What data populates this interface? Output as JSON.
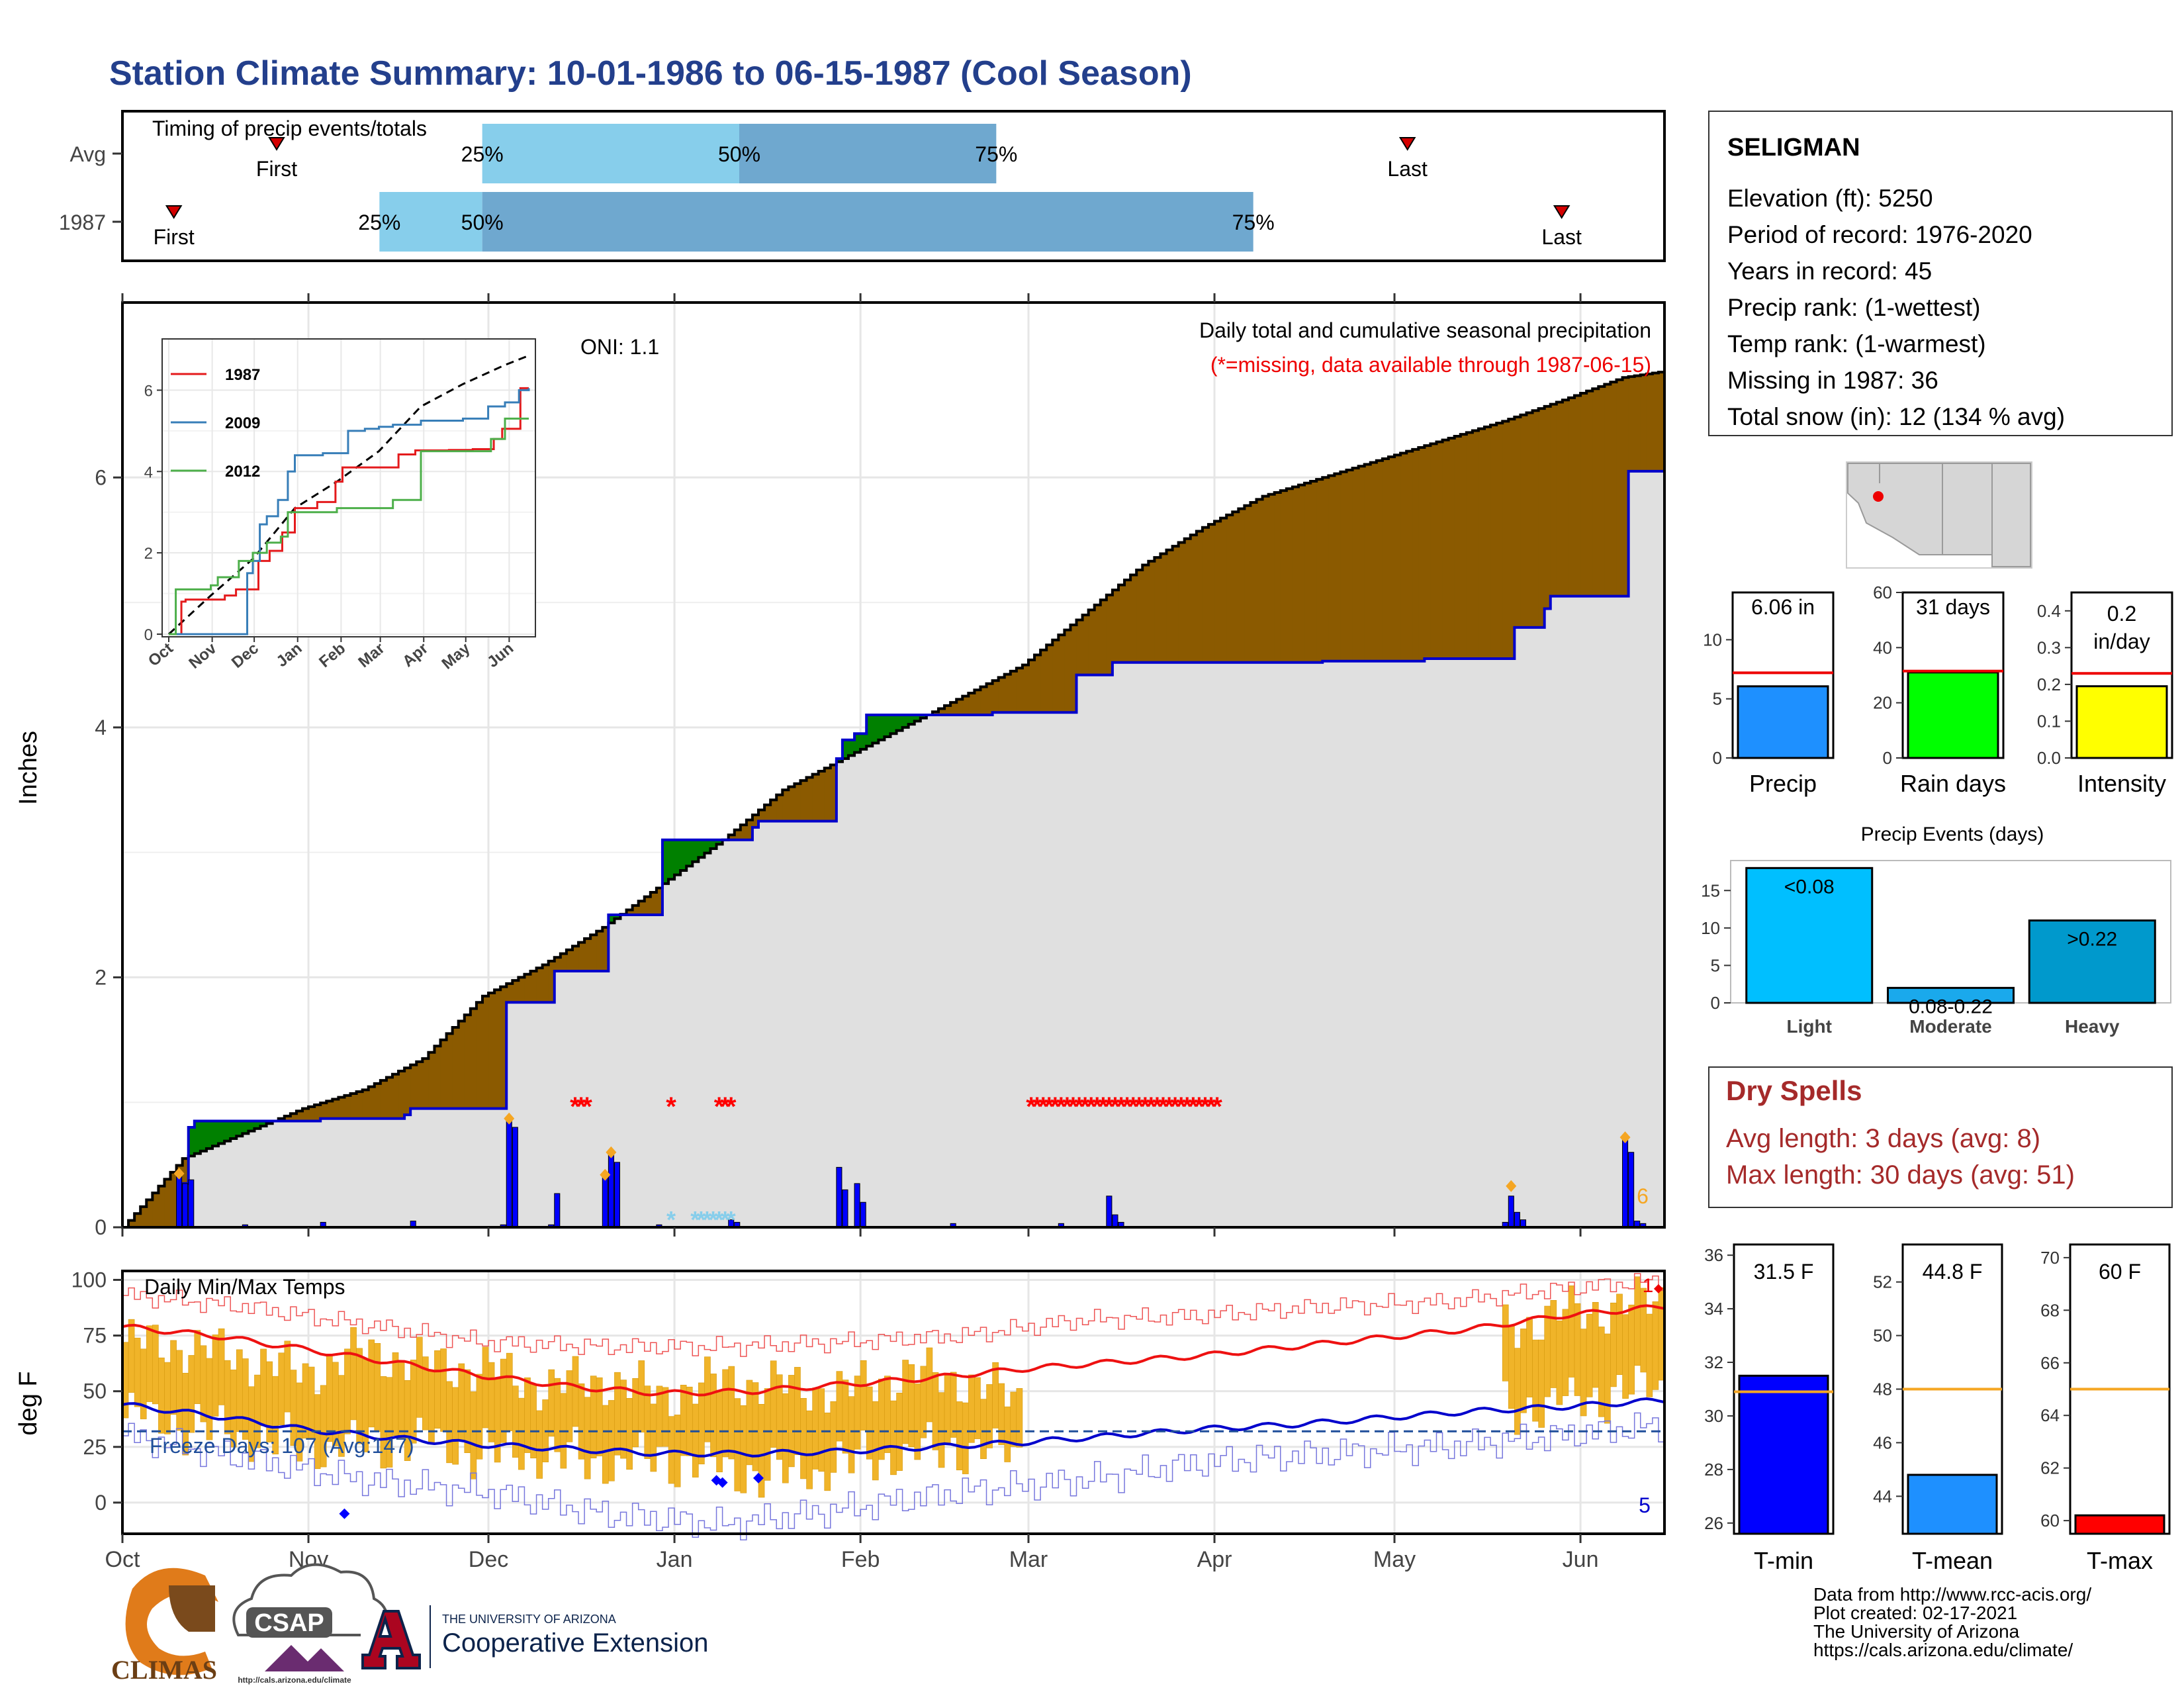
{
  "title": "Station Climate Summary: 10-01-1986 to 06-15-1987 (Cool Season)",
  "timing": {
    "title": "Timing of precip events/totals",
    "rows": [
      {
        "label": "Avg",
        "first": 15,
        "q25": 35,
        "q50": 60,
        "q75": 85,
        "last": 125
      },
      {
        "label": "1987",
        "first": 5,
        "q25": 25,
        "q50": 35,
        "q75": 110,
        "last": 140
      }
    ],
    "pct_labels": [
      "25%",
      "50%",
      "75%"
    ],
    "first_label": "First",
    "last_label": "Last",
    "colors": {
      "q1": "#87ceeb",
      "q2": "#6fa8cf",
      "marker": "#d40000"
    }
  },
  "info": {
    "station": "SELIGMAN",
    "lines": [
      "Elevation (ft): 5250",
      "Period of record: 1976-2020",
      "Years in record: 45",
      "Precip rank:  (1-wettest)",
      "Temp rank:  (1-warmest)",
      "Missing in 1987: 36",
      "Total snow (in): 12 (134 % avg)"
    ]
  },
  "chart_data": [
    {
      "name": "precip",
      "type": "area",
      "ylabel": "Inches",
      "ylim": [
        0,
        7.4
      ],
      "yticks": [
        0,
        2,
        4,
        6
      ],
      "x_months": [
        "Oct",
        "Nov",
        "Dec",
        "Jan",
        "Feb",
        "Mar",
        "Apr",
        "May",
        "Jun"
      ],
      "header": "Daily total and cumulative seasonal precipitation",
      "subheader": "(*=missing, data available through 1987-06-15)",
      "oni": "ONI: 1.1",
      "corner_count": "6",
      "avg_cumulative": {
        "x": [
          0,
          10,
          20,
          30,
          40,
          50,
          60,
          70,
          80,
          90,
          100,
          110,
          120,
          130,
          140,
          150,
          160,
          170,
          180,
          190,
          200,
          210,
          220,
          230,
          240,
          250,
          257
        ],
        "y": [
          0,
          0.55,
          0.75,
          0.95,
          1.1,
          1.35,
          1.85,
          2.1,
          2.4,
          2.75,
          3.1,
          3.5,
          3.75,
          4.0,
          4.25,
          4.5,
          4.9,
          5.3,
          5.6,
          5.85,
          6.0,
          6.15,
          6.3,
          6.45,
          6.62,
          6.8,
          6.85
        ]
      },
      "cumulative_1987": {
        "x": [
          0,
          9,
          10,
          11,
          12,
          32,
          33,
          34,
          47,
          48,
          49,
          63,
          64,
          65,
          71,
          72,
          80,
          81,
          89,
          90,
          101,
          105,
          106,
          118,
          119,
          120,
          122,
          124,
          125,
          142,
          145,
          146,
          158,
          159,
          164,
          165,
          176,
          177,
          199,
          200,
          216,
          217,
          231,
          232,
          237,
          238,
          250,
          251,
          257
        ],
        "y": [
          0,
          0,
          0.35,
          0.8,
          0.85,
          0.85,
          0.87,
          0.87,
          0.9,
          0.95,
          0.95,
          0.95,
          1.8,
          1.8,
          1.8,
          2.05,
          2.05,
          2.5,
          2.5,
          3.1,
          3.1,
          3.2,
          3.25,
          3.25,
          3.75,
          3.9,
          3.95,
          4.1,
          4.1,
          4.1,
          4.12,
          4.12,
          4.12,
          4.42,
          4.42,
          4.52,
          4.52,
          4.52,
          4.52,
          4.53,
          4.53,
          4.55,
          4.55,
          4.8,
          4.95,
          5.05,
          5.05,
          6.05,
          6.05
        ]
      },
      "daily_1987": [
        {
          "day": 9,
          "value": 0.43
        },
        {
          "day": 10,
          "value": 0.35
        },
        {
          "day": 11,
          "value": 0.38
        },
        {
          "day": 20,
          "value": 0.02
        },
        {
          "day": 33,
          "value": 0.04
        },
        {
          "day": 48,
          "value": 0.05
        },
        {
          "day": 63,
          "value": 0.02
        },
        {
          "day": 64,
          "value": 0.85
        },
        {
          "day": 65,
          "value": 0.8
        },
        {
          "day": 71,
          "value": 0.02
        },
        {
          "day": 72,
          "value": 0.27
        },
        {
          "day": 80,
          "value": 0.4
        },
        {
          "day": 81,
          "value": 0.6
        },
        {
          "day": 82,
          "value": 0.52
        },
        {
          "day": 89,
          "value": 0.02
        },
        {
          "day": 101,
          "value": 0.06
        },
        {
          "day": 102,
          "value": 0.04
        },
        {
          "day": 119,
          "value": 0.48
        },
        {
          "day": 120,
          "value": 0.3
        },
        {
          "day": 122,
          "value": 0.35
        },
        {
          "day": 123,
          "value": 0.2
        },
        {
          "day": 138,
          "value": 0.03
        },
        {
          "day": 156,
          "value": 0.03
        },
        {
          "day": 164,
          "value": 0.25
        },
        {
          "day": 165,
          "value": 0.1
        },
        {
          "day": 166,
          "value": 0.04
        },
        {
          "day": 230,
          "value": 0.04
        },
        {
          "day": 231,
          "value": 0.25
        },
        {
          "day": 232,
          "value": 0.12
        },
        {
          "day": 233,
          "value": 0.06
        },
        {
          "day": 250,
          "value": 0.7
        },
        {
          "day": 251,
          "value": 0.6
        },
        {
          "day": 252,
          "value": 0.05
        },
        {
          "day": 253,
          "value": 0.03
        }
      ],
      "event_markers": [
        {
          "day": 9,
          "value": 0.43
        },
        {
          "day": 64,
          "value": 0.87
        },
        {
          "day": 80,
          "value": 0.42
        },
        {
          "day": 81,
          "value": 0.6
        },
        {
          "day": 231,
          "value": 0.33
        },
        {
          "day": 250,
          "value": 0.72
        }
      ],
      "missing_days": [
        75,
        76,
        77,
        91,
        99,
        100,
        101,
        151,
        152,
        153,
        154,
        155,
        156,
        157,
        158,
        159,
        160,
        161,
        162,
        163,
        164,
        165,
        166,
        167,
        168,
        169,
        170,
        171,
        172,
        173,
        174,
        175,
        176,
        177,
        178,
        179,
        180,
        181,
        182
      ],
      "snow_days": [
        91,
        95,
        96,
        97,
        98,
        99,
        100,
        101
      ],
      "colors": {
        "dry": "#8b5a00",
        "wet": "#008000",
        "fill": "#e0e0e0",
        "line": "#0000cc",
        "bars": "#0000ff",
        "marker": "#f5a623",
        "missing": "#ff0000",
        "snow": "#87ceeb"
      }
    },
    {
      "name": "inset_cumulative",
      "type": "line",
      "x_months": [
        "Oct",
        "Nov",
        "Dec",
        "Jan",
        "Feb",
        "Mar",
        "Apr",
        "May",
        "Jun"
      ],
      "ylim": [
        0,
        7
      ],
      "yticks": [
        0,
        2,
        4,
        6
      ],
      "series": [
        {
          "name": "1987",
          "color": "#e41a1c",
          "x": [
            0,
            9,
            12,
            40,
            48,
            64,
            72,
            81,
            90,
            106,
            119,
            124,
            164,
            176,
            200,
            217,
            232,
            238,
            251,
            257
          ],
          "y": [
            0,
            0.8,
            0.85,
            0.95,
            1.1,
            1.8,
            2.05,
            2.5,
            3.1,
            3.25,
            3.75,
            4.1,
            4.42,
            4.52,
            4.53,
            4.55,
            4.8,
            5.05,
            6.05,
            6.05
          ]
        },
        {
          "name": "2009",
          "color": "#377eb8",
          "x": [
            0,
            55,
            56,
            60,
            65,
            70,
            78,
            85,
            90,
            110,
            128,
            140,
            150,
            160,
            180,
            210,
            228,
            240,
            250,
            257
          ],
          "y": [
            0,
            0,
            1.5,
            1.8,
            2.7,
            2.9,
            3.3,
            4.0,
            4.4,
            4.45,
            5.0,
            5.05,
            5.1,
            5.15,
            5.25,
            5.3,
            5.6,
            5.7,
            6.0,
            6.05
          ]
        },
        {
          "name": "2012",
          "color": "#4daf4a",
          "x": [
            0,
            5,
            10,
            30,
            35,
            50,
            60,
            70,
            80,
            85,
            100,
            120,
            140,
            160,
            170,
            180,
            200,
            230,
            240,
            257
          ],
          "y": [
            0,
            1.1,
            1.1,
            1.2,
            1.4,
            1.8,
            2.0,
            2.25,
            2.4,
            3.0,
            3.0,
            3.1,
            3.1,
            3.3,
            3.3,
            4.5,
            4.5,
            4.8,
            5.3,
            5.3
          ]
        }
      ],
      "avg": {
        "x": [
          0,
          30,
          60,
          90,
          120,
          150,
          180,
          210,
          240,
          257
        ],
        "y": [
          0,
          0.95,
          1.85,
          3.1,
          3.75,
          4.5,
          5.6,
          6.15,
          6.62,
          6.85
        ]
      }
    },
    {
      "name": "summary_precip",
      "type": "bar",
      "panels": [
        {
          "label": "Precip",
          "value_label": "6.06 in",
          "value": 6.06,
          "avg": 7.2,
          "ylim": [
            0,
            14
          ],
          "yticks": [
            0,
            5,
            10
          ],
          "color": "#1e90ff"
        },
        {
          "label": "Rain days",
          "value_label": "31 days",
          "value": 31,
          "avg": 31.5,
          "ylim": [
            0,
            60
          ],
          "yticks": [
            0,
            20,
            40,
            60
          ],
          "color": "#00ff00"
        },
        {
          "label": "Intensity",
          "value_label": "0.2\nin/day",
          "value": 0.195,
          "avg": 0.23,
          "ylim": [
            0,
            0.45
          ],
          "yticks": [
            0.0,
            0.1,
            0.2,
            0.3,
            0.4
          ],
          "color": "#ffff00"
        }
      ]
    },
    {
      "name": "precip_events",
      "type": "bar",
      "title": "Precip Events (days)",
      "categories": [
        "Light",
        "Moderate",
        "Heavy"
      ],
      "values": [
        18,
        2,
        11
      ],
      "bar_labels": [
        "<0.08",
        "0.08-0.22",
        ">0.22"
      ],
      "ylim": [
        0,
        19
      ],
      "yticks": [
        0,
        5,
        10,
        15
      ],
      "colors": [
        "#00bfff",
        "#1aa9ec",
        "#0099cc"
      ]
    },
    {
      "name": "temps",
      "type": "line",
      "ylabel": "deg F",
      "ylim": [
        -14,
        104
      ],
      "yticks": [
        0,
        25,
        50,
        75,
        100
      ],
      "x_months": [
        "Oct",
        "Nov",
        "Dec",
        "Jan",
        "Feb",
        "Mar",
        "Apr",
        "May",
        "Jun"
      ],
      "header": "Daily Min/Max Temps",
      "freeze_text": "Freeze Days: 107 (Avg:147)",
      "freeze_line": 32,
      "count_high": "1",
      "count_low": "5",
      "avg_max": {
        "x": [
          0,
          15,
          30,
          45,
          60,
          75,
          90,
          105,
          120,
          135,
          150,
          165,
          180,
          195,
          210,
          225,
          240,
          257
        ],
        "y": [
          79,
          75,
          69,
          63,
          57,
          52,
          49,
          50,
          53,
          56,
          60,
          63,
          66,
          70,
          74,
          78,
          84,
          88
        ]
      },
      "avg_min": {
        "x": [
          0,
          15,
          30,
          45,
          60,
          75,
          90,
          105,
          120,
          135,
          150,
          165,
          180,
          195,
          210,
          225,
          240,
          257
        ],
        "y": [
          44,
          39,
          33,
          29,
          26,
          24,
          22,
          22,
          23,
          25,
          27,
          30,
          33,
          35,
          38,
          41,
          43,
          46
        ]
      },
      "record_max": {
        "x": [
          0,
          20,
          40,
          60,
          80,
          100,
          120,
          140,
          160,
          180,
          200,
          220,
          240,
          257
        ],
        "y": [
          93,
          88,
          80,
          72,
          70,
          70,
          72,
          75,
          82,
          84,
          88,
          90,
          96,
          100
        ]
      },
      "record_min": {
        "x": [
          0,
          20,
          40,
          60,
          80,
          100,
          120,
          140,
          160,
          180,
          200,
          220,
          240,
          257
        ],
        "y": [
          30,
          20,
          10,
          5,
          -5,
          -10,
          -3,
          5,
          10,
          18,
          22,
          25,
          30,
          35
        ]
      },
      "obs_window": [
        {
          "start": 0,
          "end": 150
        },
        {
          "start": 230,
          "end": 257
        }
      ],
      "obs_max": {
        "x": [
          0,
          10,
          20,
          30,
          40,
          50,
          60,
          70,
          80,
          90,
          100,
          110,
          120,
          130,
          140,
          150,
          230,
          240,
          250,
          257
        ],
        "y": [
          72,
          70,
          65,
          58,
          68,
          62,
          60,
          52,
          55,
          48,
          55,
          52,
          50,
          58,
          55,
          45,
          78,
          85,
          88,
          92
        ]
      },
      "obs_min": {
        "x": [
          0,
          10,
          20,
          30,
          40,
          50,
          60,
          70,
          80,
          90,
          100,
          110,
          120,
          130,
          140,
          150,
          230,
          240,
          250,
          257
        ],
        "y": [
          40,
          35,
          30,
          25,
          26,
          28,
          22,
          22,
          18,
          20,
          15,
          12,
          18,
          22,
          25,
          20,
          42,
          45,
          50,
          52
        ]
      },
      "record_points": [
        {
          "day": 37,
          "value": -5
        },
        {
          "day": 99,
          "value": 10
        },
        {
          "day": 100,
          "value": 9
        },
        {
          "day": 106,
          "value": 11
        }
      ],
      "colors": {
        "bars": "#f0b429",
        "avg_max": "#ee1111",
        "avg_min": "#0000cc",
        "rec_max": "#ee5555",
        "rec_min": "#7777dd",
        "freeze": "#1f4e9a",
        "record": "#0000ff",
        "hot": "#ee0000"
      }
    },
    {
      "name": "summary_temps",
      "type": "bar",
      "panels": [
        {
          "label": "T-min",
          "value_label": "31.5 F",
          "value": 31.5,
          "avg": 30.9,
          "ylim": [
            25.6,
            36.4
          ],
          "yticks": [
            26,
            28,
            30,
            32,
            34,
            36
          ],
          "color": "#0000ff"
        },
        {
          "label": "T-mean",
          "value_label": "44.8 F",
          "value": 44.8,
          "avg": 48.0,
          "ylim": [
            42.6,
            53.4
          ],
          "yticks": [
            44,
            46,
            48,
            50,
            52
          ],
          "color": "#1e90ff"
        },
        {
          "label": "T-max",
          "value_label": "60 F",
          "value": 60.2,
          "avg": 65.0,
          "ylim": [
            59.5,
            70.5
          ],
          "yticks": [
            60,
            62,
            64,
            66,
            68,
            70
          ],
          "color": "#ff0000"
        }
      ]
    }
  ],
  "dry_spells": {
    "title": "Dry Spells",
    "lines": [
      "Avg length: 3 days (avg: 8)",
      "Max length: 30 days (avg: 51)"
    ]
  },
  "footer": {
    "lines": [
      "Data from http://www.rcc-acis.org/",
      "Plot created: 02-17-2021",
      "The University of Arizona",
      "https://cals.arizona.edu/climate/"
    ]
  },
  "logos": {
    "climas": "CLIMAS",
    "csap": "CSAP",
    "csap_url": "http://cals.arizona.edu/climate",
    "ua_line1": "THE UNIVERSITY OF ARIZONA",
    "ua_line2": "Cooperative Extension"
  }
}
